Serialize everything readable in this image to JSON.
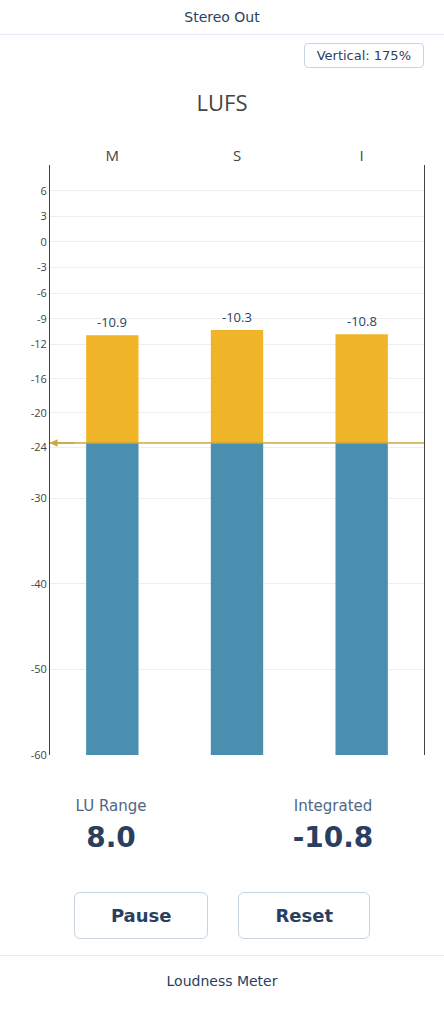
{
  "chart_data": {
    "type": "bar",
    "title": "LUFS",
    "categories": [
      "M",
      "S",
      "I"
    ],
    "values": [
      -10.9,
      -10.3,
      -10.8
    ],
    "color": "#f0b429",
    "threshold": -23.5,
    "threshold_color": "#c8a83a",
    "below_threshold_color": "#4a8fb0",
    "ylim": [
      -60,
      9
    ],
    "yticks": [
      6,
      3,
      0,
      -3,
      -6,
      -9,
      -12,
      -16,
      -20,
      -24,
      -30,
      -40,
      -50,
      -60
    ],
    "grid": true,
    "data_labels": true,
    "annotations": [
      "Stereo Out",
      "Vertical: 175%",
      "LU Range",
      "8.0",
      "Integrated",
      "-10.8",
      "Pause",
      "Reset",
      "Loudness Meter"
    ]
  }
}
